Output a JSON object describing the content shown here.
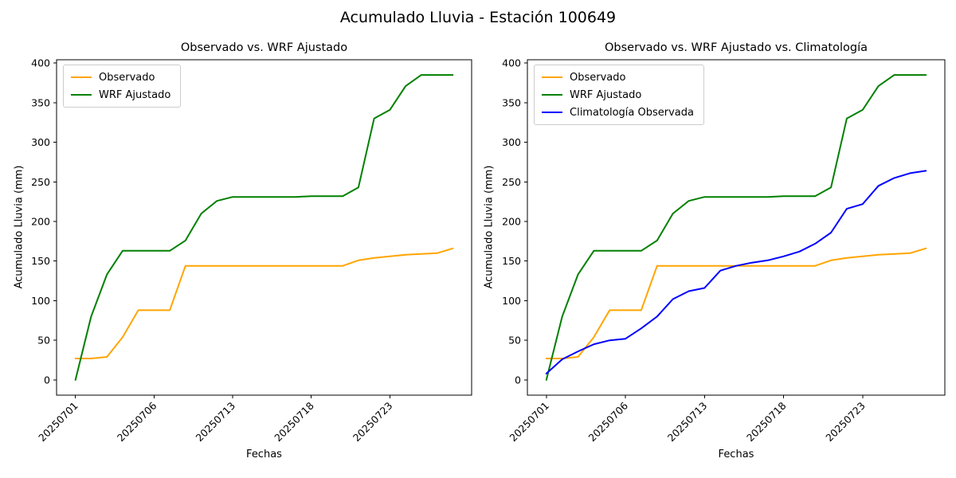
{
  "suptitle": "Acumulado Lluvia - Estación 100649",
  "chart_data": [
    {
      "type": "line",
      "title": "Observado vs. WRF Ajustado",
      "xlabel": "Fechas",
      "ylabel": "Acumulado Lluvia (mm)",
      "x_tick_positions": [
        0,
        5,
        10,
        15,
        20
      ],
      "x_tick_labels": [
        "20250701",
        "20250706",
        "20250713",
        "20250718",
        "20250723"
      ],
      "y_ticks": [
        0,
        50,
        100,
        150,
        200,
        250,
        300,
        350,
        400
      ],
      "xlim": [
        -1.2,
        25.2
      ],
      "ylim": [
        -19.25,
        404.25
      ],
      "grid": false,
      "legend_position": "upper left",
      "series": [
        {
          "name": "Observado",
          "color": "#ffa500",
          "values": [
            27,
            27,
            29,
            54,
            88,
            88,
            88,
            144,
            144,
            144,
            144,
            144,
            144,
            144,
            144,
            144,
            144,
            144,
            151,
            154,
            156,
            158,
            159,
            160,
            166
          ]
        },
        {
          "name": "WRF Ajustado",
          "color": "#008000",
          "values": [
            0,
            80,
            133,
            163,
            163,
            163,
            163,
            176,
            210,
            226,
            231,
            231,
            231,
            231,
            231,
            232,
            232,
            232,
            243,
            330,
            341,
            371,
            385,
            385,
            385
          ]
        }
      ]
    },
    {
      "type": "line",
      "title": "Observado vs. WRF Ajustado vs. Climatología",
      "xlabel": "Fechas",
      "ylabel": "Acumulado Lluvia (mm)",
      "x_tick_positions": [
        0,
        5,
        10,
        15,
        20
      ],
      "x_tick_labels": [
        "20250701",
        "20250706",
        "20250713",
        "20250718",
        "20250723"
      ],
      "y_ticks": [
        0,
        50,
        100,
        150,
        200,
        250,
        300,
        350,
        400
      ],
      "xlim": [
        -1.2,
        25.2
      ],
      "ylim": [
        -19.25,
        404.25
      ],
      "grid": false,
      "legend_position": "upper left",
      "series": [
        {
          "name": "Observado",
          "color": "#ffa500",
          "values": [
            27,
            27,
            29,
            54,
            88,
            88,
            88,
            144,
            144,
            144,
            144,
            144,
            144,
            144,
            144,
            144,
            144,
            144,
            151,
            154,
            156,
            158,
            159,
            160,
            166
          ]
        },
        {
          "name": "WRF Ajustado",
          "color": "#008000",
          "values": [
            0,
            80,
            133,
            163,
            163,
            163,
            163,
            176,
            210,
            226,
            231,
            231,
            231,
            231,
            231,
            232,
            232,
            232,
            243,
            330,
            341,
            371,
            385,
            385,
            385
          ]
        },
        {
          "name": "Climatología Observada",
          "color": "#0000ff",
          "values": [
            8,
            26,
            36,
            45,
            50,
            52,
            65,
            80,
            102,
            112,
            116,
            138,
            144,
            148,
            151,
            156,
            162,
            172,
            186,
            216,
            222,
            245,
            255,
            261,
            264
          ]
        }
      ]
    }
  ]
}
